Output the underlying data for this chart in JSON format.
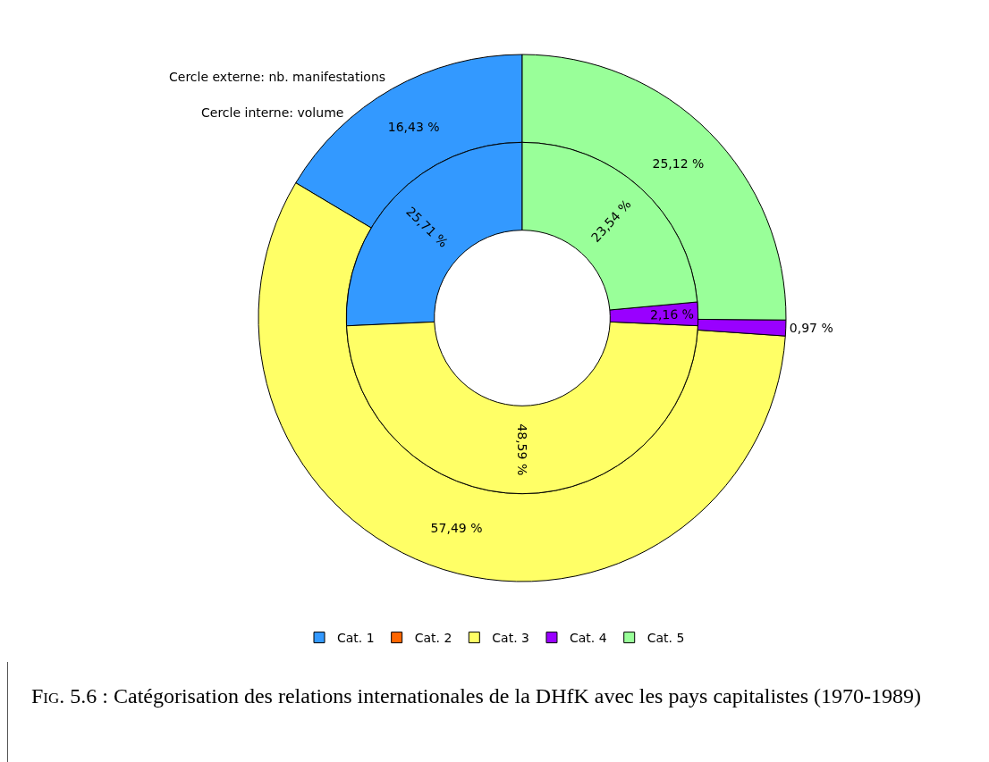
{
  "chart_data": {
    "type": "donut",
    "title": "Fig. 5.6 : Catégorisation des relations internationales de la DHfK avec les pays capitalistes (1970-1989)",
    "categories": [
      "Cat. 1",
      "Cat. 2",
      "Cat. 3",
      "Cat. 4",
      "Cat. 5"
    ],
    "colors": [
      "#3399ff",
      "#ff6600",
      "#ffff66",
      "#9900ff",
      "#99ff99"
    ],
    "legend": "bottom",
    "annotations": [
      "Cercle externe: nb. manifestations",
      "Cercle interne: volume"
    ],
    "series": [
      {
        "values": [
          16.43,
          0,
          57.49,
          0.97,
          25.12
        ],
        "value_labels": [
          "16,43 %",
          null,
          "57,49 %",
          "0,97 %",
          "25,12 %"
        ]
      },
      {
        "values": [
          25.71,
          0,
          48.59,
          2.16,
          23.54
        ],
        "value_labels": [
          "25,71 %",
          null,
          "48,59 %",
          "2,16 %",
          "23,54 %"
        ]
      }
    ]
  }
}
